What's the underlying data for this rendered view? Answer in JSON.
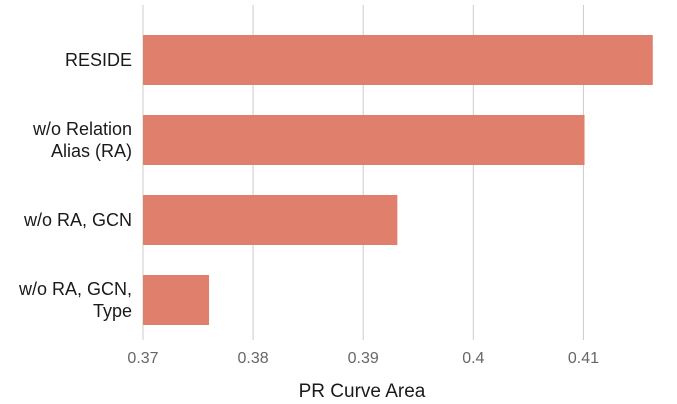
{
  "chart_data": {
    "type": "bar",
    "orientation": "horizontal",
    "categories": [
      [
        "RESIDE"
      ],
      [
        "w/o Relation",
        "Alias (RA)"
      ],
      [
        "w/o RA, GCN"
      ],
      [
        "w/o RA, GCN,",
        "Type"
      ]
    ],
    "values": [
      0.4163,
      0.4101,
      0.3931,
      0.376
    ],
    "xlabel": "PR Curve Area",
    "ylabel": "",
    "xlim": [
      0.37,
      0.4175
    ],
    "xticks": [
      0.37,
      0.38,
      0.39,
      0.4,
      0.41
    ],
    "xtick_labels": [
      "0.37",
      "0.38",
      "0.39",
      "0.4",
      "0.41"
    ],
    "grid": "vertical",
    "legend": "none",
    "colors": {
      "bar": "#df7f6c",
      "grid": "#cccccc",
      "tick_label": "#666666",
      "category_label": "#1a1a1a",
      "axis_title": "#1a1a1a"
    }
  }
}
